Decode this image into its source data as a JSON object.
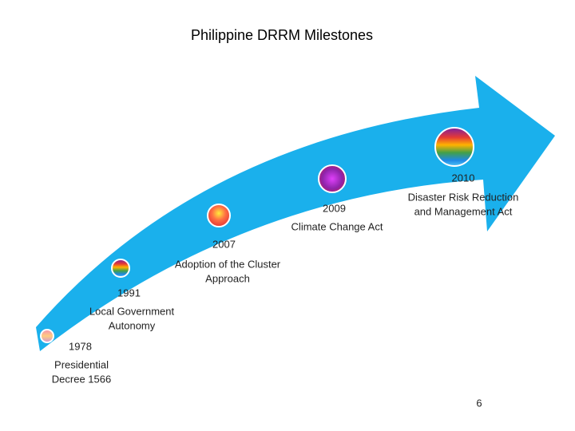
{
  "title": "Philippine DRRM Milestones",
  "milestones": [
    {
      "year": "1978",
      "label_lines": [
        "Presidential",
        "Decree 1566"
      ]
    },
    {
      "year": "1991",
      "label_lines": [
        "Local Government",
        "Autonomy"
      ]
    },
    {
      "year": "2007",
      "label_lines": [
        "Adoption of the Cluster",
        "Approach"
      ]
    },
    {
      "year": "2009",
      "label_lines": [
        "Climate Change Act"
      ]
    },
    {
      "year": "2010",
      "label_lines": [
        "Disaster Risk Reduction",
        "and Management Act"
      ]
    }
  ],
  "page_number": "6"
}
